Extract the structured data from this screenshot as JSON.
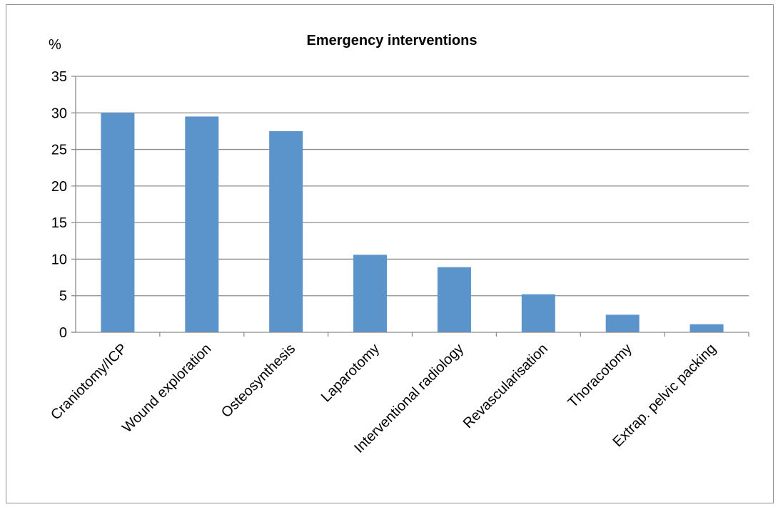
{
  "chart_data": {
    "type": "bar",
    "title": "Emergency interventions",
    "ylabel": "%",
    "xlabel": "",
    "categories": [
      "Craniotomy/ICP",
      "Wound exploration",
      "Osteosynthesis",
      "Laparotomy",
      "Interventional radiology",
      "Revascularisation",
      "Thoracotomy",
      "Extrap. pelvic packing"
    ],
    "values": [
      30,
      29.5,
      27.5,
      10.6,
      8.9,
      5.2,
      2.4,
      1.1
    ],
    "ylim": [
      0,
      35
    ],
    "yticks": [
      0,
      5,
      10,
      15,
      20,
      25,
      30,
      35
    ],
    "grid": true,
    "legend": "none",
    "bar_color": "#5b93cb",
    "grid_color": "#8c8c8c"
  }
}
